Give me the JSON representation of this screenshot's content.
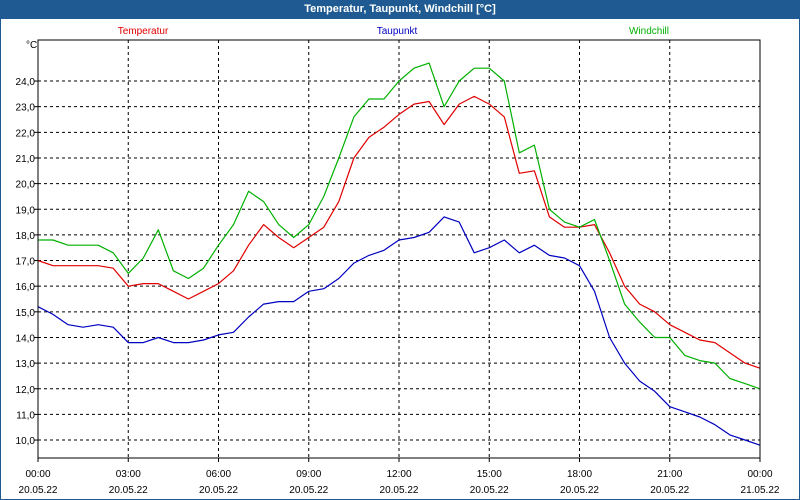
{
  "window": {
    "title": "Temperatur, Taupunkt, Windchill [°C]"
  },
  "chart_data": {
    "type": "line",
    "title": "Temperatur, Taupunkt, Windchill [°C]",
    "ylabel": "°C",
    "ylim": [
      9.3,
      25.6
    ],
    "xlim": [
      0,
      24
    ],
    "grid": true,
    "yticks": [
      10.0,
      11.0,
      12.0,
      13.0,
      14.0,
      15.0,
      16.0,
      17.0,
      18.0,
      19.0,
      20.0,
      21.0,
      22.0,
      23.0,
      24.0
    ],
    "ytick_labels": [
      "10,0",
      "11,0",
      "12,0",
      "13,0",
      "14,0",
      "15,0",
      "16,0",
      "17,0",
      "18,0",
      "19,0",
      "20,0",
      "21,0",
      "22,0",
      "23,0",
      "24,0"
    ],
    "xticks": [
      0,
      3,
      6,
      9,
      12,
      15,
      18,
      21,
      24
    ],
    "xtick_time_labels": [
      "00:00",
      "03:00",
      "06:00",
      "09:00",
      "12:00",
      "15:00",
      "18:00",
      "21:00",
      "00:00"
    ],
    "xtick_date_labels": [
      "20.05.22",
      "20.05.22",
      "20.05.22",
      "20.05.22",
      "20.05.22",
      "20.05.22",
      "20.05.22",
      "20.05.22",
      "21.05.22"
    ],
    "series": [
      {
        "name": "Temperatur",
        "color": "#e00000",
        "x": [
          0,
          0.5,
          1,
          1.5,
          2,
          2.5,
          3,
          3.5,
          4,
          4.5,
          5,
          5.5,
          6,
          6.5,
          7,
          7.5,
          8,
          8.5,
          9,
          9.5,
          10,
          10.5,
          11,
          11.5,
          12,
          12.5,
          13,
          13.5,
          14,
          14.5,
          15,
          15.5,
          16,
          16.5,
          17,
          17.5,
          18,
          18.5,
          19,
          19.5,
          20,
          20.5,
          21,
          21.5,
          22,
          22.5,
          23,
          23.5,
          24
        ],
        "values": [
          17.0,
          16.8,
          16.8,
          16.8,
          16.8,
          16.7,
          16.0,
          16.1,
          16.1,
          15.8,
          15.5,
          15.8,
          16.1,
          16.6,
          17.6,
          18.4,
          17.9,
          17.5,
          17.9,
          18.3,
          19.3,
          21.0,
          21.8,
          22.2,
          22.7,
          23.1,
          23.2,
          22.3,
          23.1,
          23.4,
          23.1,
          22.6,
          20.4,
          20.5,
          18.7,
          18.3,
          18.3,
          18.4,
          17.3,
          16.0,
          15.3,
          15.0,
          14.5,
          14.2,
          13.9,
          13.8,
          13.4,
          13.0,
          12.8
        ]
      },
      {
        "name": "Taupunkt",
        "color": "#0000c0",
        "x": [
          0,
          0.5,
          1,
          1.5,
          2,
          2.5,
          3,
          3.5,
          4,
          4.5,
          5,
          5.5,
          6,
          6.5,
          7,
          7.5,
          8,
          8.5,
          9,
          9.5,
          10,
          10.5,
          11,
          11.5,
          12,
          12.5,
          13,
          13.5,
          14,
          14.5,
          15,
          15.5,
          16,
          16.5,
          17,
          17.5,
          18,
          18.5,
          19,
          19.5,
          20,
          20.5,
          21,
          21.5,
          22,
          22.5,
          23,
          23.5,
          24
        ],
        "values": [
          15.2,
          14.9,
          14.5,
          14.4,
          14.5,
          14.4,
          13.8,
          13.8,
          14.0,
          13.8,
          13.8,
          13.9,
          14.1,
          14.2,
          14.8,
          15.3,
          15.4,
          15.4,
          15.8,
          15.9,
          16.3,
          16.9,
          17.2,
          17.4,
          17.8,
          17.9,
          18.1,
          18.7,
          18.5,
          17.3,
          17.5,
          17.8,
          17.3,
          17.6,
          17.2,
          17.1,
          16.8,
          15.8,
          14.0,
          13.0,
          12.3,
          11.9,
          11.3,
          11.1,
          10.9,
          10.6,
          10.2,
          10.0,
          9.8
        ]
      },
      {
        "name": "Windchill",
        "color": "#00b000",
        "x": [
          0,
          0.5,
          1,
          1.5,
          2,
          2.5,
          3,
          3.5,
          4,
          4.5,
          5,
          5.5,
          6,
          6.5,
          7,
          7.5,
          8,
          8.5,
          9,
          9.5,
          10,
          10.5,
          11,
          11.5,
          12,
          12.5,
          13,
          13.5,
          14,
          14.5,
          15,
          15.5,
          16,
          16.5,
          17,
          17.5,
          18,
          18.5,
          19,
          19.5,
          20,
          20.5,
          21,
          21.5,
          22,
          22.5,
          23,
          23.5,
          24
        ],
        "values": [
          17.8,
          17.8,
          17.6,
          17.6,
          17.6,
          17.3,
          16.5,
          17.1,
          18.2,
          16.6,
          16.3,
          16.7,
          17.6,
          18.4,
          19.7,
          19.3,
          18.4,
          17.9,
          18.4,
          19.5,
          21.0,
          22.6,
          23.3,
          23.3,
          24.0,
          24.5,
          24.7,
          23.0,
          24.0,
          24.5,
          24.5,
          24.0,
          21.2,
          21.5,
          19.0,
          18.5,
          18.3,
          18.6,
          17.0,
          15.3,
          14.6,
          14.0,
          14.0,
          13.3,
          13.1,
          13.0,
          12.4,
          12.2,
          12.0
        ]
      }
    ]
  }
}
